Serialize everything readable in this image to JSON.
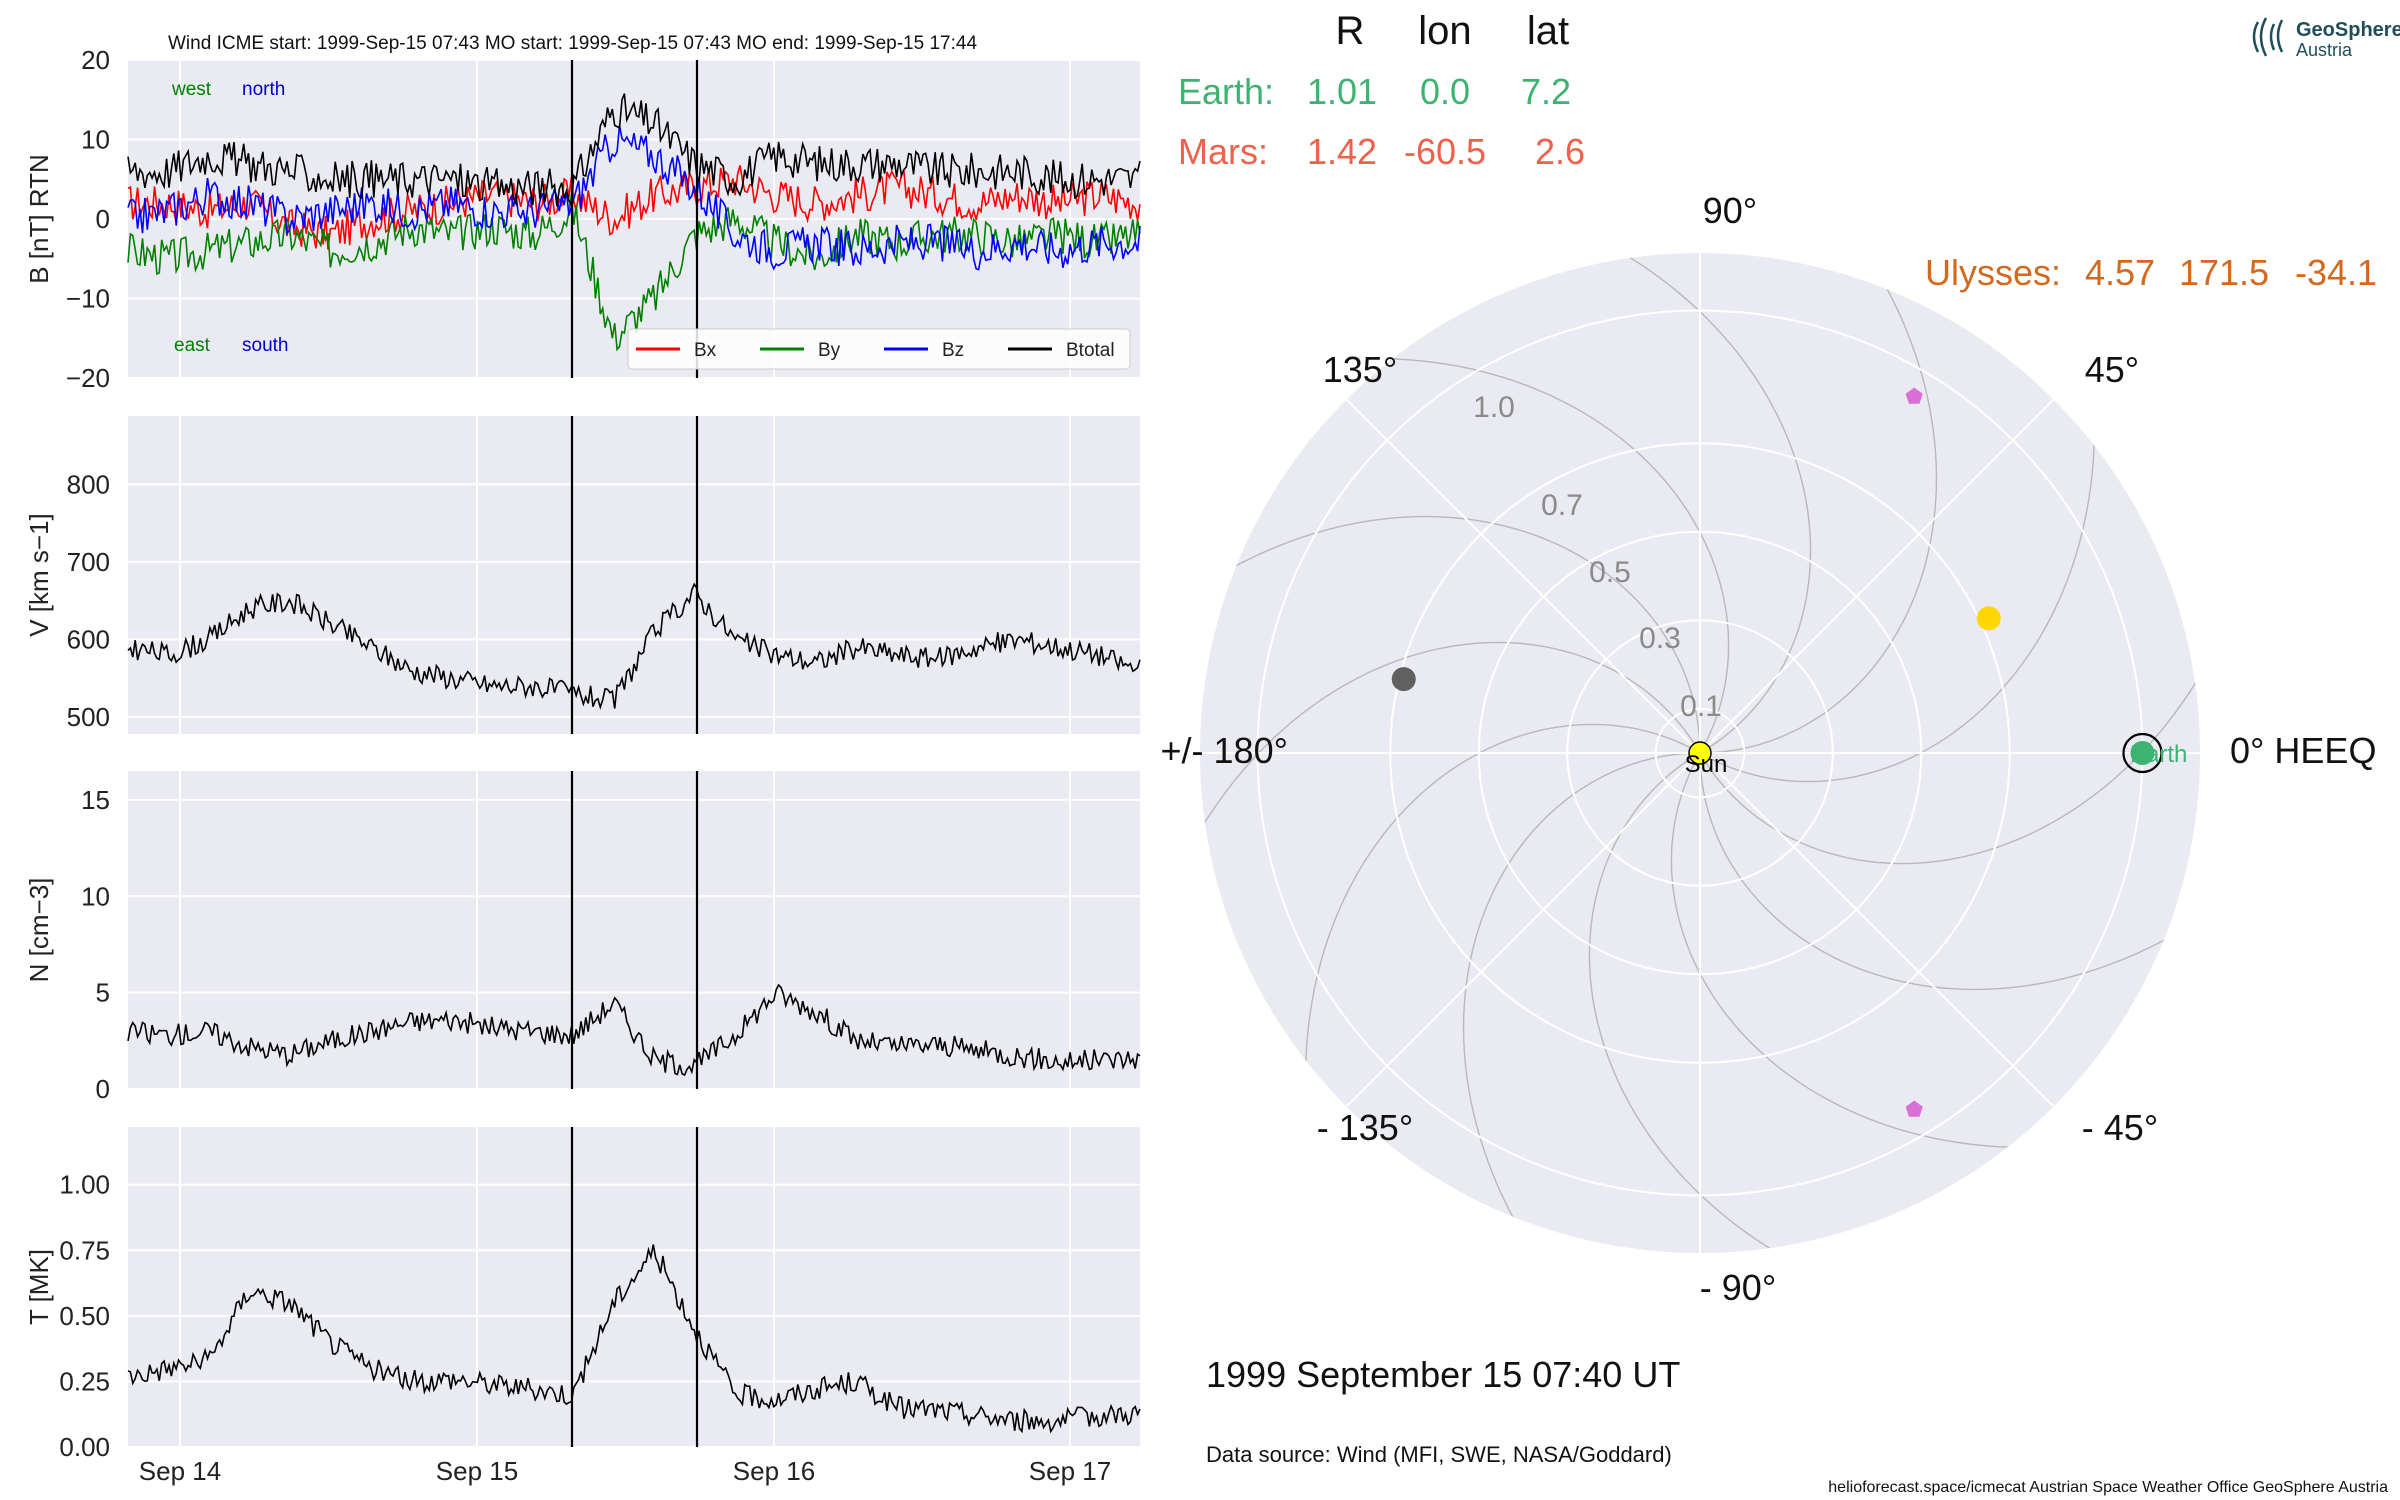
{
  "header": {
    "title": "Wind    ICME start: 1999-Sep-15 07:43   MO start: 1999-Sep-15 07:43   MO end: 1999-Sep-15 17:44"
  },
  "logo": {
    "line1": "GeoSphere",
    "line2": "Austria"
  },
  "table": {
    "col_R": "R",
    "col_lon": "lon",
    "col_lat": "lat",
    "rows": [
      {
        "name": "Earth:",
        "R": "1.01",
        "lon": "0.0",
        "lat": "7.2",
        "color": "#3cb371"
      },
      {
        "name": "Mars:",
        "R": "1.42",
        "lon": "-60.5",
        "lat": "2.6",
        "color": "#f0604a"
      },
      {
        "name": "Ulysses:",
        "R": "4.57",
        "lon": "171.5",
        "lat": "-34.1",
        "color": "#d2691e"
      }
    ]
  },
  "polar": {
    "angle_labels": {
      "a90": "90°",
      "a45": "45°",
      "a135": "135°",
      "a0": "0° HEEQ",
      "a180": "+/- 180°",
      "am45": "- 45°",
      "am135": "- 135°",
      "am90": "- 90°"
    },
    "r_labels": [
      "0.1",
      "0.3",
      "0.5",
      "0.7",
      "1.0"
    ],
    "r_ticks": [
      0.1,
      0.3,
      0.5,
      0.7,
      1.0
    ],
    "sun_label": "Sun",
    "earth_label": "Earth",
    "bodies": [
      {
        "name": "earth",
        "r": 1.0,
        "lon": 0.0,
        "color": "#3cb371"
      },
      {
        "name": "mercury",
        "r": 0.69,
        "lon": 166,
        "color": "#606060"
      },
      {
        "name": "venus",
        "r": 0.72,
        "lon": 25,
        "color": "#ffd700"
      },
      {
        "name": "probe-a",
        "r": 0.94,
        "lon": 59,
        "color": "#da70d6"
      },
      {
        "name": "probe-b",
        "r": 0.94,
        "lon": -59,
        "color": "#da70d6"
      }
    ]
  },
  "date_label": "1999 September 15  07:40 UT",
  "data_source": "Data source: Wind (MFI, SWE, NASA/Goddard)",
  "footer": "helioforecast.space/icmecat   Austrian Space Weather Office   GeoSphere Austria",
  "chart_data": [
    {
      "type": "line",
      "title": "Wind    ICME start: 1999-Sep-15 07:43   MO start: 1999-Sep-15 07:43   MO end: 1999-Sep-15 17:44",
      "ylabel": "B [nT] RTN",
      "ylim": [
        -20,
        20
      ],
      "yticks": [
        "−20",
        "−10",
        "0",
        "10",
        "20"
      ],
      "xlim": [
        "1999-09-13 19:40",
        "1999-09-17 07:40"
      ],
      "xticks": [
        "Sep 14",
        "Sep 15",
        "Sep 16",
        "Sep 17"
      ],
      "annotations": [
        "west",
        "north",
        "east",
        "south"
      ],
      "event_lines": [
        "1999-09-15 07:43",
        "1999-09-15 17:44"
      ],
      "legend": "lower right",
      "series": [
        {
          "name": "Bx",
          "color": "#ff0000",
          "values": [
            2,
            2,
            1,
            2,
            -1,
            -2,
            0,
            1,
            2,
            3,
            2,
            3,
            0,
            3,
            4,
            5,
            3,
            2,
            3,
            4,
            3,
            2,
            3,
            2,
            3,
            2
          ]
        },
        {
          "name": "By",
          "color": "#008000",
          "values": [
            -4,
            -5,
            -4,
            -3,
            -2,
            -4,
            -3,
            -1,
            -2,
            -1,
            -2,
            1,
            -15,
            -10,
            -2,
            0,
            -3,
            -5,
            -2,
            -3,
            -2,
            -2,
            -3,
            -2,
            -3,
            -2
          ]
        },
        {
          "name": "Bz",
          "color": "#0000ff",
          "values": [
            0,
            1,
            3,
            2,
            0,
            1,
            2,
            1,
            2,
            1,
            1,
            2,
            10,
            8,
            4,
            -2,
            -4,
            -3,
            -4,
            -3,
            -3,
            -4,
            -3,
            -4,
            -3,
            -3
          ]
        },
        {
          "name": "Btotal",
          "color": "#000000",
          "values": [
            6,
            6,
            8,
            7,
            6,
            5,
            5,
            5,
            5,
            4,
            4,
            4,
            14,
            12,
            7,
            5,
            8,
            7,
            7,
            7,
            6,
            6,
            6,
            5,
            5,
            5
          ]
        }
      ]
    },
    {
      "type": "line",
      "ylabel": "V [km s−1]",
      "ylim": [
        478,
        888
      ],
      "yticks": [
        "500",
        "600",
        "700",
        "800"
      ],
      "series": [
        {
          "name": "",
          "color": "#000000",
          "values": [
            590,
            580,
            600,
            640,
            650,
            620,
            590,
            560,
            550,
            540,
            540,
            530,
            520,
            610,
            660,
            600,
            580,
            570,
            590,
            580,
            575,
            590,
            600,
            590,
            580,
            560
          ]
        }
      ]
    },
    {
      "type": "line",
      "ylabel": "N [cm−3]",
      "ylim": [
        0,
        16.5
      ],
      "yticks": [
        "0",
        "5",
        "10",
        "15"
      ],
      "series": [
        {
          "name": "",
          "color": "#000000",
          "values": [
            3,
            2.8,
            3,
            2.2,
            1.8,
            2.5,
            3,
            3.5,
            3.6,
            3.2,
            3,
            2.8,
            4.5,
            1.5,
            1.2,
            2.8,
            5,
            4,
            2.5,
            2.2,
            2.3,
            2,
            1.7,
            1.4,
            1.5,
            1.6
          ]
        }
      ]
    },
    {
      "type": "line",
      "ylabel": "T [MK]",
      "ylim": [
        0,
        1.22
      ],
      "yticks": [
        "0.00",
        "0.25",
        "0.50",
        "0.75",
        "1.00"
      ],
      "series": [
        {
          "name": "",
          "color": "#000000",
          "values": [
            0.27,
            0.3,
            0.33,
            0.6,
            0.55,
            0.4,
            0.3,
            0.25,
            0.26,
            0.24,
            0.22,
            0.2,
            0.55,
            0.75,
            0.45,
            0.2,
            0.18,
            0.22,
            0.25,
            0.15,
            0.14,
            0.12,
            0.1,
            0.1,
            0.12,
            0.13
          ]
        }
      ]
    }
  ]
}
